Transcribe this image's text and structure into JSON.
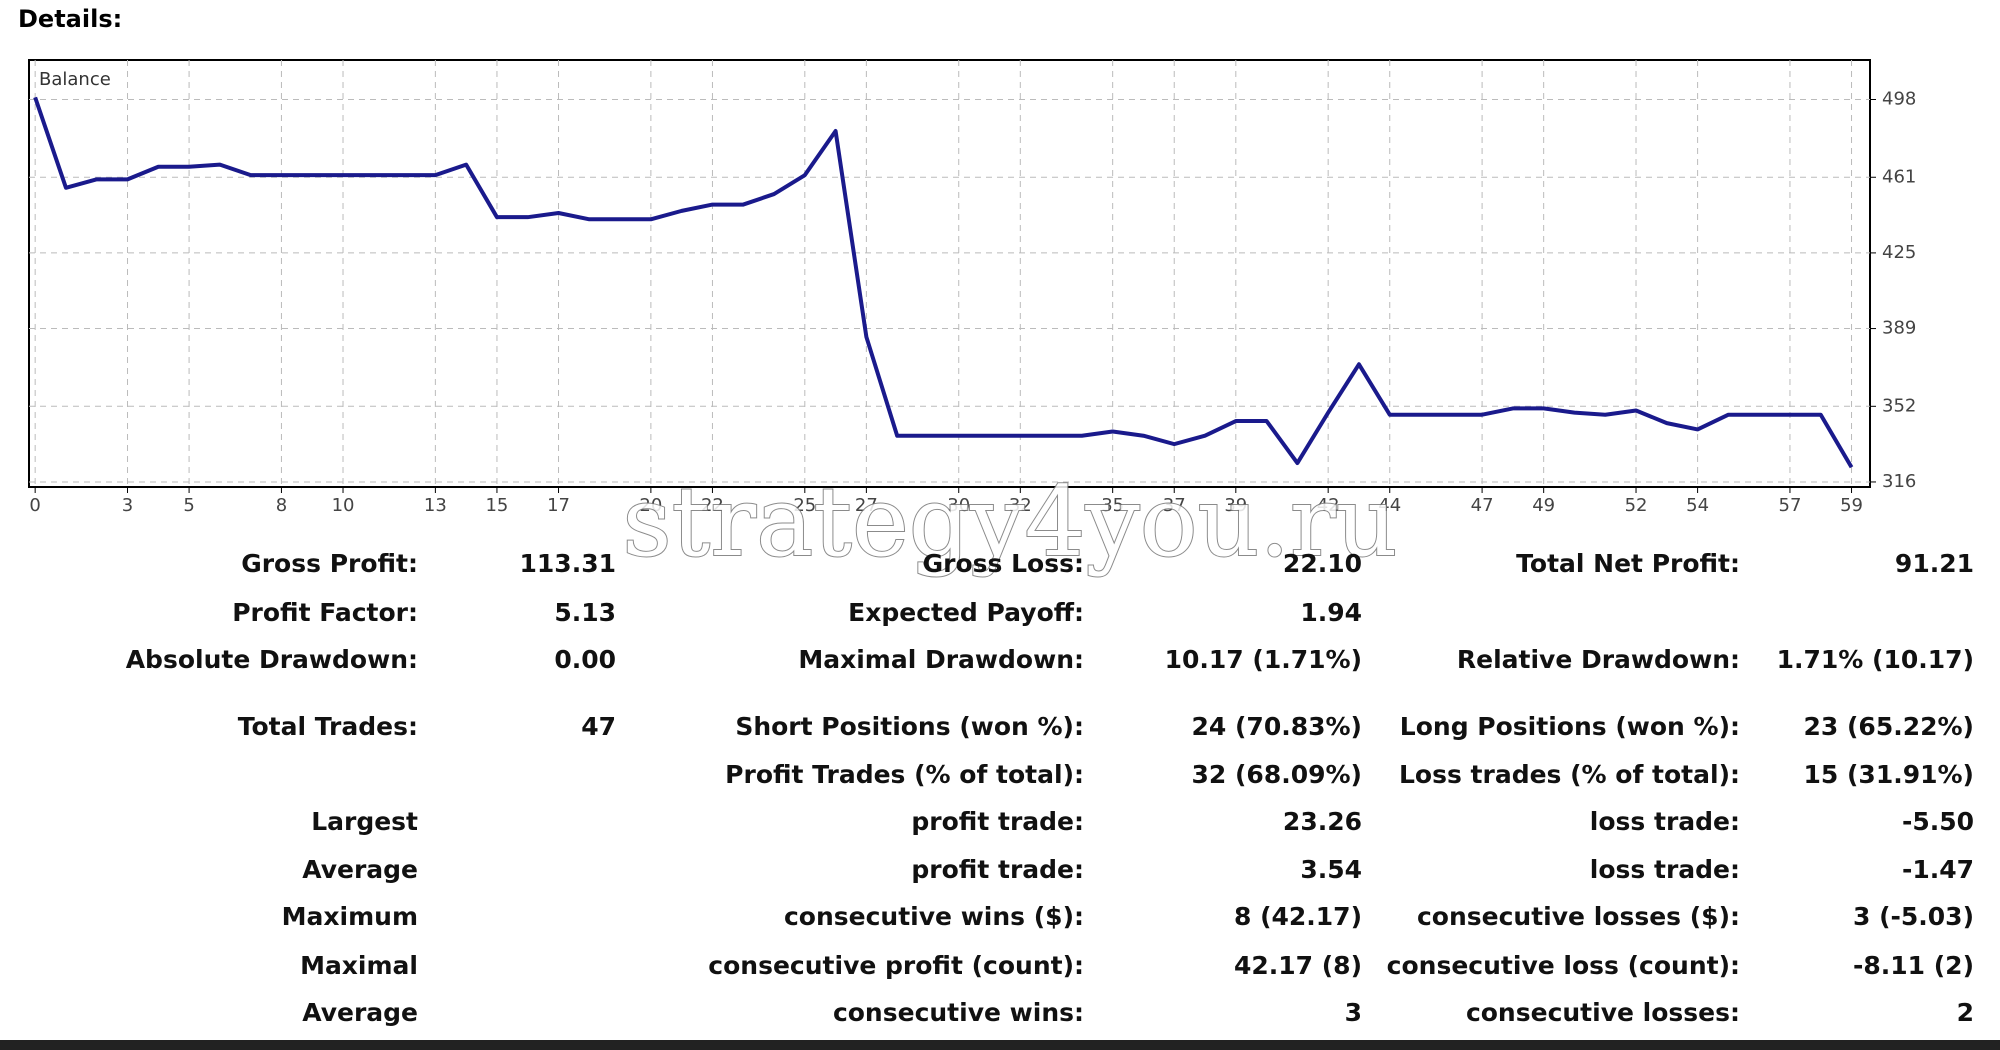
{
  "header": {
    "title": "Details:"
  },
  "chart_data": {
    "type": "line",
    "title": "Balance",
    "x": [
      0,
      1,
      2,
      3,
      4,
      5,
      6,
      7,
      8,
      9,
      10,
      11,
      12,
      13,
      14,
      15,
      16,
      17,
      18,
      19,
      20,
      21,
      22,
      23,
      24,
      25,
      26,
      27,
      28,
      29,
      30,
      31,
      32,
      33,
      34,
      35,
      36,
      37,
      38,
      39,
      40,
      41,
      42,
      43,
      44,
      45,
      46,
      47,
      48,
      49,
      50,
      51,
      52,
      53,
      54,
      55,
      56,
      57,
      58,
      59
    ],
    "series": [
      {
        "name": "Balance",
        "color": "#1a1a8c",
        "values": [
          499,
          456,
          460,
          460,
          466,
          466,
          467,
          462,
          462,
          462,
          462,
          462,
          462,
          462,
          467,
          442,
          442,
          444,
          441,
          441,
          441,
          445,
          448,
          448,
          453,
          462,
          483,
          385,
          338,
          338,
          338,
          338,
          338,
          338,
          338,
          340,
          338,
          334,
          338,
          345,
          345,
          325,
          349,
          372,
          348,
          348,
          348,
          348,
          351,
          351,
          349,
          348,
          350,
          344,
          341,
          348,
          348,
          348,
          348,
          323
        ]
      }
    ],
    "xlim": [
      -0.2,
      59.6
    ],
    "xticks": [
      0,
      3,
      5,
      8,
      10,
      13,
      15,
      17,
      20,
      22,
      25,
      27,
      30,
      32,
      35,
      37,
      39,
      42,
      44,
      47,
      49,
      52,
      54,
      57,
      59
    ],
    "ylim": [
      313.6,
      516.8
    ],
    "yticks": [
      316,
      352,
      389,
      425,
      461,
      498
    ],
    "grid": true
  },
  "watermark": "strategy4you.ru",
  "table": {
    "rows": [
      [
        "Gross Profit:",
        "113.31",
        "Gross Loss:",
        "22.10",
        "Total Net Profit:",
        "91.21"
      ],
      [
        "Profit Factor:",
        "5.13",
        "Expected Payoff:",
        "1.94",
        null,
        null
      ],
      [
        "Absolute Drawdown:",
        "0.00",
        "Maximal Drawdown:",
        "10.17 (1.71%)",
        "Relative Drawdown:",
        "1.71% (10.17)"
      ],
      [
        "Total Trades:",
        "47",
        "Short Positions (won %):",
        "24 (70.83%)",
        "Long Positions (won %):",
        "23 (65.22%)"
      ],
      [
        null,
        null,
        "Profit Trades (% of total):",
        "32 (68.09%)",
        "Loss trades (% of total):",
        "15 (31.91%)"
      ],
      [
        "Largest",
        null,
        "profit trade:",
        "23.26",
        "loss trade:",
        "-5.50"
      ],
      [
        "Average",
        null,
        "profit trade:",
        "3.54",
        "loss trade:",
        "-1.47"
      ],
      [
        "Maximum",
        null,
        "consecutive wins ($):",
        "8 (42.17)",
        "consecutive losses ($):",
        "3 (-5.03)"
      ],
      [
        "Maximal",
        null,
        "consecutive profit (count):",
        "42.17 (8)",
        "consecutive loss (count):",
        "-8.11 (2)"
      ],
      [
        "Average",
        null,
        "consecutive wins:",
        "3",
        "consecutive losses:",
        "2"
      ]
    ]
  }
}
